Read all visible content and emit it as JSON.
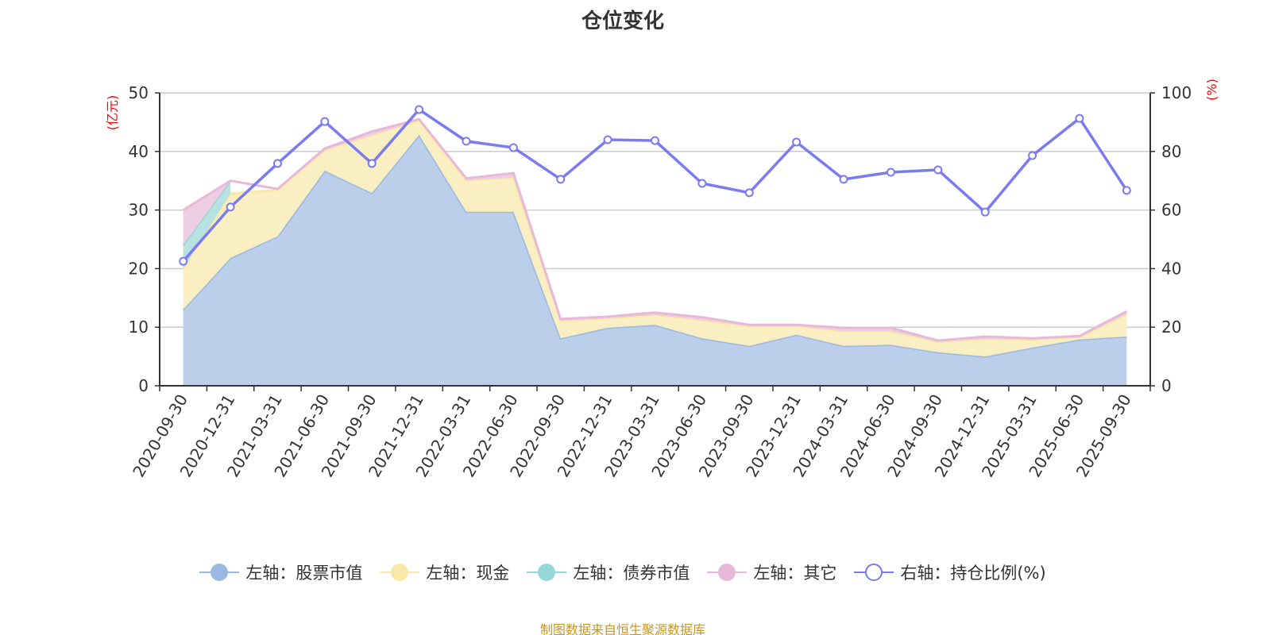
{
  "chart_data": {
    "type": "area",
    "title": "仓位变化",
    "left_axis_unit": "(亿元)",
    "right_axis_unit": "(%)",
    "ylim_left": [
      0,
      50
    ],
    "ylim_right": [
      0,
      100
    ],
    "left_ticks": [
      "0",
      "10",
      "20",
      "30",
      "40",
      "50"
    ],
    "right_ticks": [
      "0",
      "20",
      "40",
      "60",
      "80",
      "100"
    ],
    "categories": [
      "2020-09-30",
      "2020-12-31",
      "2021-03-31",
      "2021-06-30",
      "2021-09-30",
      "2021-12-31",
      "2022-03-31",
      "2022-06-30",
      "2022-09-30",
      "2022-12-31",
      "2023-03-31",
      "2023-06-30",
      "2023-09-30",
      "2023-12-31",
      "2024-03-31",
      "2024-06-30",
      "2024-09-30",
      "2024-12-31",
      "2025-03-31",
      "2025-06-30",
      "2025-09-30"
    ],
    "series": [
      {
        "name": "左轴：股票市值",
        "axis": "left",
        "stack": true,
        "color": "#9bb8e0",
        "fill": "#b8cce9",
        "values": [
          13.0,
          21.8,
          25.5,
          36.7,
          32.9,
          42.8,
          29.7,
          29.7,
          8.1,
          9.9,
          10.4,
          8.1,
          6.8,
          8.7,
          6.8,
          7.0,
          5.7,
          5.0,
          6.5,
          7.9,
          8.4
        ]
      },
      {
        "name": "左轴：现金",
        "axis": "left",
        "stack": true,
        "color": "#f8e8a8",
        "fill": "#f9eec0",
        "values": [
          7.0,
          11.0,
          7.9,
          3.5,
          9.9,
          2.5,
          5.4,
          5.8,
          3.0,
          1.6,
          1.7,
          3.1,
          3.4,
          1.5,
          2.5,
          2.3,
          1.8,
          3.0,
          1.4,
          0.4,
          3.8
        ]
      },
      {
        "name": "左轴：债券市值",
        "axis": "left",
        "stack": true,
        "color": "#96d6d6",
        "fill": "#b4e0e0",
        "values": [
          4.0,
          2.2,
          null,
          null,
          null,
          null,
          null,
          null,
          null,
          null,
          null,
          null,
          null,
          null,
          null,
          null,
          null,
          null,
          null,
          null,
          null
        ]
      },
      {
        "name": "左轴：其它",
        "axis": "left",
        "stack": true,
        "color": "#e8b8d8",
        "fill": "#eccbe0",
        "values": [
          6.0,
          0.0,
          0.2,
          0.3,
          0.6,
          0.2,
          0.3,
          0.8,
          0.3,
          0.3,
          0.4,
          0.5,
          0.2,
          0.2,
          0.6,
          0.6,
          0.2,
          0.4,
          0.2,
          0.2,
          0.5
        ]
      },
      {
        "name": "右轴：持仓比例(%)",
        "axis": "right",
        "stack": false,
        "color": "#7b7bf0",
        "values": [
          42.5,
          61.0,
          75.9,
          90.2,
          75.9,
          94.3,
          83.5,
          81.3,
          70.5,
          84.0,
          83.7,
          69.1,
          65.9,
          83.2,
          70.5,
          72.9,
          73.7,
          59.3,
          78.6,
          91.3,
          66.7
        ]
      }
    ]
  },
  "footer": "制图数据来自恒生聚源数据库"
}
